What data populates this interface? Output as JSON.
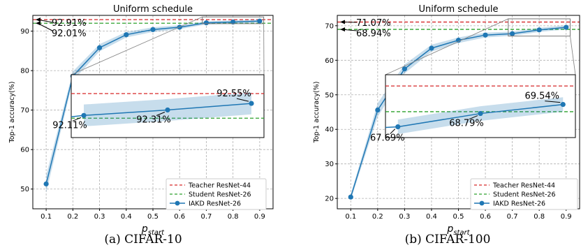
{
  "chart_data": [
    {
      "type": "line",
      "title": "Uniform schedule",
      "xlabel_main": "p",
      "xlabel_sub": "start",
      "ylabel": "Top-1 accuracy(%)",
      "caption": "(a) CIFAR-10",
      "xlim": [
        0.05,
        0.95
      ],
      "ylim": [
        45,
        94
      ],
      "xticks": [
        0.1,
        0.2,
        0.3,
        0.4,
        0.5,
        0.6,
        0.7,
        0.8,
        0.9
      ],
      "xtick_labels": [
        "0.1",
        "0.2",
        "0.3",
        "0.4",
        "0.5",
        "0.6",
        "0.7",
        "0.8",
        "0.9"
      ],
      "yticks": [
        50,
        60,
        70,
        80,
        90
      ],
      "ytick_labels": [
        "50",
        "60",
        "70",
        "80",
        "90"
      ],
      "grid": true,
      "legend_position": "lower-right",
      "series": [
        {
          "name": "Teacher ResNet-44",
          "style": "dashed",
          "color": "#d62728",
          "value": 92.91
        },
        {
          "name": "Student ResNet-26",
          "style": "dashed",
          "color": "#2ca02c",
          "value": 92.01
        },
        {
          "name": "IAKD ResNet-26",
          "style": "line-marker",
          "color": "#1f77b4",
          "x": [
            0.1,
            0.2,
            0.3,
            0.4,
            0.5,
            0.6,
            0.7,
            0.8,
            0.9
          ],
          "y": [
            51.3,
            78.6,
            85.8,
            89.1,
            90.4,
            91.0,
            92.11,
            92.31,
            92.55
          ],
          "band": [
            2.2,
            1.2,
            0.9,
            0.7,
            0.6,
            0.5,
            0.4,
            0.4,
            0.4
          ]
        }
      ],
      "annotations": [
        "92.91%",
        "92.01%"
      ],
      "inset": {
        "x": [
          0.7,
          0.8,
          0.9
        ],
        "xlim": [
          0.685,
          0.915
        ],
        "ylim": [
          91.3,
          93.6
        ],
        "labels": [
          "92.11%",
          "92.31%",
          "92.55%"
        ]
      }
    },
    {
      "type": "line",
      "title": "Uniform schedule",
      "xlabel_main": "p",
      "xlabel_sub": "start",
      "ylabel": "Top-1 accuracy(%)",
      "caption": "(b) CIFAR-100",
      "xlim": [
        0.05,
        0.95
      ],
      "ylim": [
        17,
        73
      ],
      "xticks": [
        0.1,
        0.2,
        0.3,
        0.4,
        0.5,
        0.6,
        0.7,
        0.8,
        0.9
      ],
      "xtick_labels": [
        "0.1",
        "0.2",
        "0.3",
        "0.4",
        "0.5",
        "0.6",
        "0.7",
        "0.8",
        "0.9"
      ],
      "yticks": [
        20,
        30,
        40,
        50,
        60,
        70
      ],
      "ytick_labels": [
        "20",
        "30",
        "40",
        "50",
        "60",
        "70"
      ],
      "grid": true,
      "legend_position": "lower-right",
      "series": [
        {
          "name": "Teacher ResNet-44",
          "style": "dashed",
          "color": "#d62728",
          "value": 71.07
        },
        {
          "name": "Student ResNet-26",
          "style": "dashed",
          "color": "#2ca02c",
          "value": 68.94
        },
        {
          "name": "IAKD ResNet-26",
          "style": "line-marker",
          "color": "#1f77b4",
          "x": [
            0.1,
            0.2,
            0.3,
            0.4,
            0.5,
            0.6,
            0.7,
            0.8,
            0.9
          ],
          "y": [
            20.4,
            45.6,
            57.5,
            63.5,
            65.8,
            67.3,
            67.69,
            68.79,
            69.54
          ],
          "band": [
            0.8,
            2.0,
            1.3,
            1.0,
            0.8,
            0.7,
            0.6,
            0.6,
            0.6
          ]
        }
      ],
      "annotations": [
        "71.07%",
        "68.94%"
      ],
      "inset": {
        "x": [
          0.7,
          0.8,
          0.9
        ],
        "xlim": [
          0.685,
          0.915
        ],
        "ylim": [
          66.8,
          72.0
        ],
        "labels": [
          "67.69%",
          "68.79%",
          "69.54%"
        ]
      }
    }
  ]
}
